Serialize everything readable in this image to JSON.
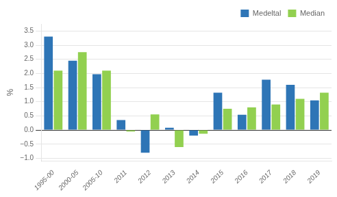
{
  "chart_data": {
    "type": "bar",
    "categories": [
      "1995-00",
      "2000-05",
      "2005-10",
      "2011",
      "2012",
      "2013",
      "2014",
      "2015",
      "2016",
      "2017",
      "2018",
      "2019"
    ],
    "series": [
      {
        "name": "Medeltal",
        "color": "#2E75B6",
        "values": [
          3.3,
          2.45,
          1.97,
          0.35,
          -0.8,
          0.08,
          -0.2,
          1.32,
          0.54,
          1.78,
          1.6,
          1.05
        ]
      },
      {
        "name": "Median",
        "color": "#92D050",
        "values": [
          2.1,
          2.75,
          2.1,
          -0.05,
          0.55,
          -0.6,
          -0.13,
          0.75,
          0.8,
          0.9,
          1.1,
          1.32
        ]
      }
    ],
    "ylabel": "%",
    "ylim": [
      -1.1,
      3.75
    ],
    "yticks": [
      {
        "value": -1.0,
        "label": "−1.0"
      },
      {
        "value": -0.5,
        "label": "−0.5"
      },
      {
        "value": 0.0,
        "label": "0.0"
      },
      {
        "value": 0.5,
        "label": "0.5"
      },
      {
        "value": 1.0,
        "label": "1.0"
      },
      {
        "value": 1.5,
        "label": "1.5"
      },
      {
        "value": 2.0,
        "label": "2.0"
      },
      {
        "value": 2.5,
        "label": "2.5"
      },
      {
        "value": 3.0,
        "label": "3.0"
      },
      {
        "value": 3.5,
        "label": "3.5"
      }
    ],
    "grid": true,
    "legend": "upper right"
  }
}
